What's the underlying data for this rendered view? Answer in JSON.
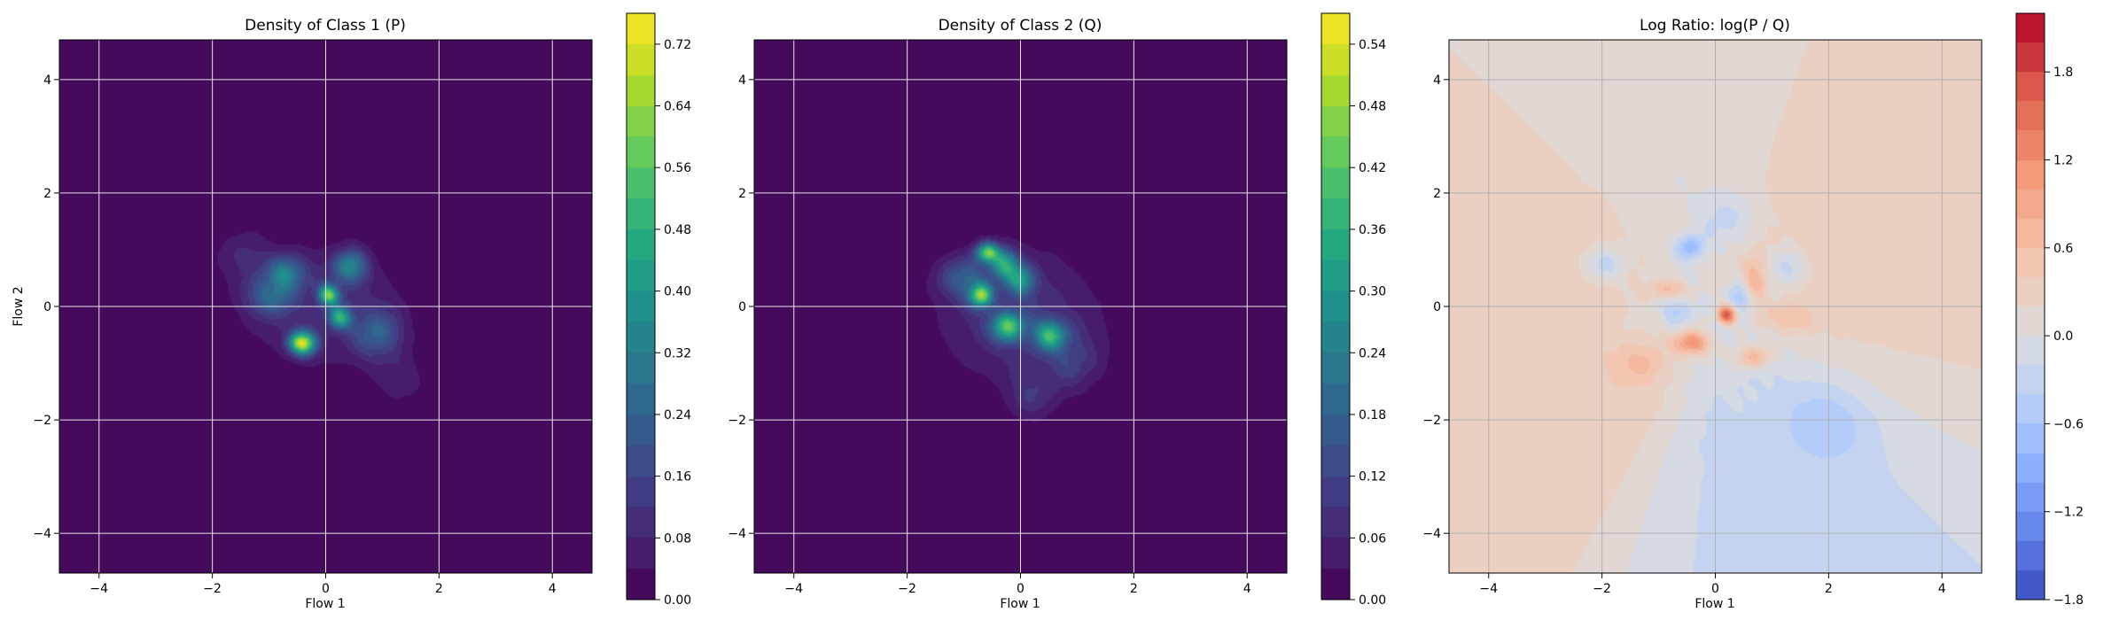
{
  "chart_data": [
    {
      "type": "heatmap",
      "title": "Density of Class 1 (P)",
      "xlabel": "Flow 1",
      "ylabel": "Flow 2",
      "xlim": [
        -4.7,
        4.7
      ],
      "ylim": [
        -4.7,
        4.7
      ],
      "xticks": [
        "−4",
        "−2",
        "0",
        "2",
        "4"
      ],
      "yticks": [
        "−4",
        "−2",
        "0",
        "2",
        "4"
      ],
      "grid": true,
      "colormap": "viridis",
      "colorbar": {
        "min": 0.0,
        "max": 0.76,
        "ticks": [
          "0.00",
          "0.08",
          "0.16",
          "0.24",
          "0.32",
          "0.40",
          "0.48",
          "0.56",
          "0.64",
          "0.72"
        ]
      },
      "blobs": [
        {
          "x": -0.4,
          "y": -0.65,
          "sx": 0.16,
          "sy": 0.14,
          "amp": 0.66
        },
        {
          "x": 0.05,
          "y": 0.2,
          "sx": 0.12,
          "sy": 0.12,
          "amp": 0.52
        },
        {
          "x": 0.25,
          "y": -0.2,
          "sx": 0.14,
          "sy": 0.14,
          "amp": 0.42
        },
        {
          "x": -0.7,
          "y": 0.6,
          "sx": 0.22,
          "sy": 0.2,
          "amp": 0.3
        },
        {
          "x": 0.45,
          "y": 0.7,
          "sx": 0.2,
          "sy": 0.2,
          "amp": 0.3
        },
        {
          "x": -1.0,
          "y": 0.2,
          "sx": 0.3,
          "sy": 0.25,
          "amp": 0.2
        },
        {
          "x": 0.9,
          "y": -0.5,
          "sx": 0.3,
          "sy": 0.3,
          "amp": 0.18
        },
        {
          "x": 0.0,
          "y": 0.0,
          "sx": 0.95,
          "sy": 0.7,
          "amp": 0.1
        },
        {
          "x": -1.4,
          "y": 0.9,
          "sx": 0.35,
          "sy": 0.3,
          "amp": 0.08
        },
        {
          "x": 1.3,
          "y": -1.3,
          "sx": 0.3,
          "sy": 0.3,
          "amp": 0.07
        }
      ]
    },
    {
      "type": "heatmap",
      "title": "Density of Class 2 (Q)",
      "xlabel": "Flow 1",
      "ylabel": "",
      "xlim": [
        -4.7,
        4.7
      ],
      "ylim": [
        -4.7,
        4.7
      ],
      "xticks": [
        "−4",
        "−2",
        "0",
        "2",
        "4"
      ],
      "yticks": [
        "−4",
        "−2",
        "0",
        "2",
        "4"
      ],
      "grid": true,
      "colormap": "viridis",
      "colorbar": {
        "min": 0.0,
        "max": 0.57,
        "ticks": [
          "0.00",
          "0.06",
          "0.12",
          "0.18",
          "0.24",
          "0.30",
          "0.36",
          "0.42",
          "0.48",
          "0.54"
        ]
      },
      "blobs": [
        {
          "x": -0.6,
          "y": 0.95,
          "sx": 0.14,
          "sy": 0.12,
          "amp": 0.4
        },
        {
          "x": -0.7,
          "y": 0.2,
          "sx": 0.14,
          "sy": 0.14,
          "amp": 0.36
        },
        {
          "x": -0.2,
          "y": -0.35,
          "sx": 0.2,
          "sy": 0.18,
          "amp": 0.36
        },
        {
          "x": 0.5,
          "y": -0.5,
          "sx": 0.2,
          "sy": 0.18,
          "amp": 0.3
        },
        {
          "x": -0.3,
          "y": 0.75,
          "sx": 0.18,
          "sy": 0.18,
          "amp": 0.28
        },
        {
          "x": 0.0,
          "y": 0.45,
          "sx": 0.18,
          "sy": 0.18,
          "amp": 0.22
        },
        {
          "x": -1.0,
          "y": 0.5,
          "sx": 0.3,
          "sy": 0.25,
          "amp": 0.16
        },
        {
          "x": 0.0,
          "y": -0.2,
          "sx": 0.95,
          "sy": 0.8,
          "amp": 0.09
        },
        {
          "x": 0.9,
          "y": -1.0,
          "sx": 0.35,
          "sy": 0.35,
          "amp": 0.08
        },
        {
          "x": 0.2,
          "y": -1.6,
          "sx": 0.3,
          "sy": 0.3,
          "amp": 0.06
        }
      ]
    },
    {
      "type": "heatmap",
      "title": "Log Ratio: log(P / Q)",
      "xlabel": "Flow 1",
      "ylabel": "",
      "xlim": [
        -4.7,
        4.7
      ],
      "ylim": [
        -4.7,
        4.7
      ],
      "xticks": [
        "−4",
        "−2",
        "0",
        "2",
        "4"
      ],
      "yticks": [
        "−4",
        "−2",
        "0",
        "2",
        "4"
      ],
      "grid": true,
      "colormap": "coolwarm",
      "colorbar": {
        "min": -1.8,
        "max": 2.2,
        "ticks": [
          "−1.8",
          "−1.2",
          "−0.6",
          "0.0",
          "0.6",
          "1.2",
          "1.8"
        ]
      },
      "blobs": [
        {
          "x": 0.2,
          "y": -0.15,
          "sx": 0.12,
          "sy": 0.12,
          "amp": 1.8
        },
        {
          "x": -0.4,
          "y": -0.65,
          "sx": 0.22,
          "sy": 0.14,
          "amp": 1.2
        },
        {
          "x": 0.7,
          "y": -0.9,
          "sx": 0.25,
          "sy": 0.15,
          "amp": 0.9
        },
        {
          "x": 0.7,
          "y": 0.5,
          "sx": 0.15,
          "sy": 0.3,
          "amp": 0.8
        },
        {
          "x": -0.8,
          "y": 0.3,
          "sx": 0.2,
          "sy": 0.12,
          "amp": 0.7
        },
        {
          "x": 1.4,
          "y": -0.2,
          "sx": 0.3,
          "sy": 0.2,
          "amp": 0.6
        },
        {
          "x": -1.3,
          "y": -1.0,
          "sx": 0.35,
          "sy": 0.25,
          "amp": 0.5
        },
        {
          "x": -0.45,
          "y": 1.05,
          "sx": 0.18,
          "sy": 0.15,
          "amp": -0.9
        },
        {
          "x": -1.95,
          "y": 0.75,
          "sx": 0.25,
          "sy": 0.2,
          "amp": -0.8
        },
        {
          "x": -0.7,
          "y": -0.1,
          "sx": 0.2,
          "sy": 0.2,
          "amp": -0.7
        },
        {
          "x": 0.45,
          "y": 0.15,
          "sx": 0.15,
          "sy": 0.2,
          "amp": -0.7
        },
        {
          "x": 2.0,
          "y": -2.1,
          "sx": 0.5,
          "sy": 0.45,
          "amp": -0.6
        },
        {
          "x": 0.3,
          "y": 1.6,
          "sx": 0.4,
          "sy": 0.3,
          "amp": -0.4
        },
        {
          "x": 1.3,
          "y": 0.7,
          "sx": 0.2,
          "sy": 0.2,
          "amp": -0.6
        }
      ],
      "background": [
        {
          "dir": [
            -1,
            -0.5
          ],
          "value": 0.35
        },
        {
          "dir": [
            -1,
            0.6
          ],
          "value": 0.3
        },
        {
          "dir": [
            0.8,
            1
          ],
          "value": 0.35
        },
        {
          "dir": [
            1,
            0.2
          ],
          "value": 0.25
        },
        {
          "dir": [
            0.4,
            -1
          ],
          "value": -0.25
        },
        {
          "dir": [
            -0.2,
            1
          ],
          "value": -0.05
        }
      ]
    }
  ]
}
